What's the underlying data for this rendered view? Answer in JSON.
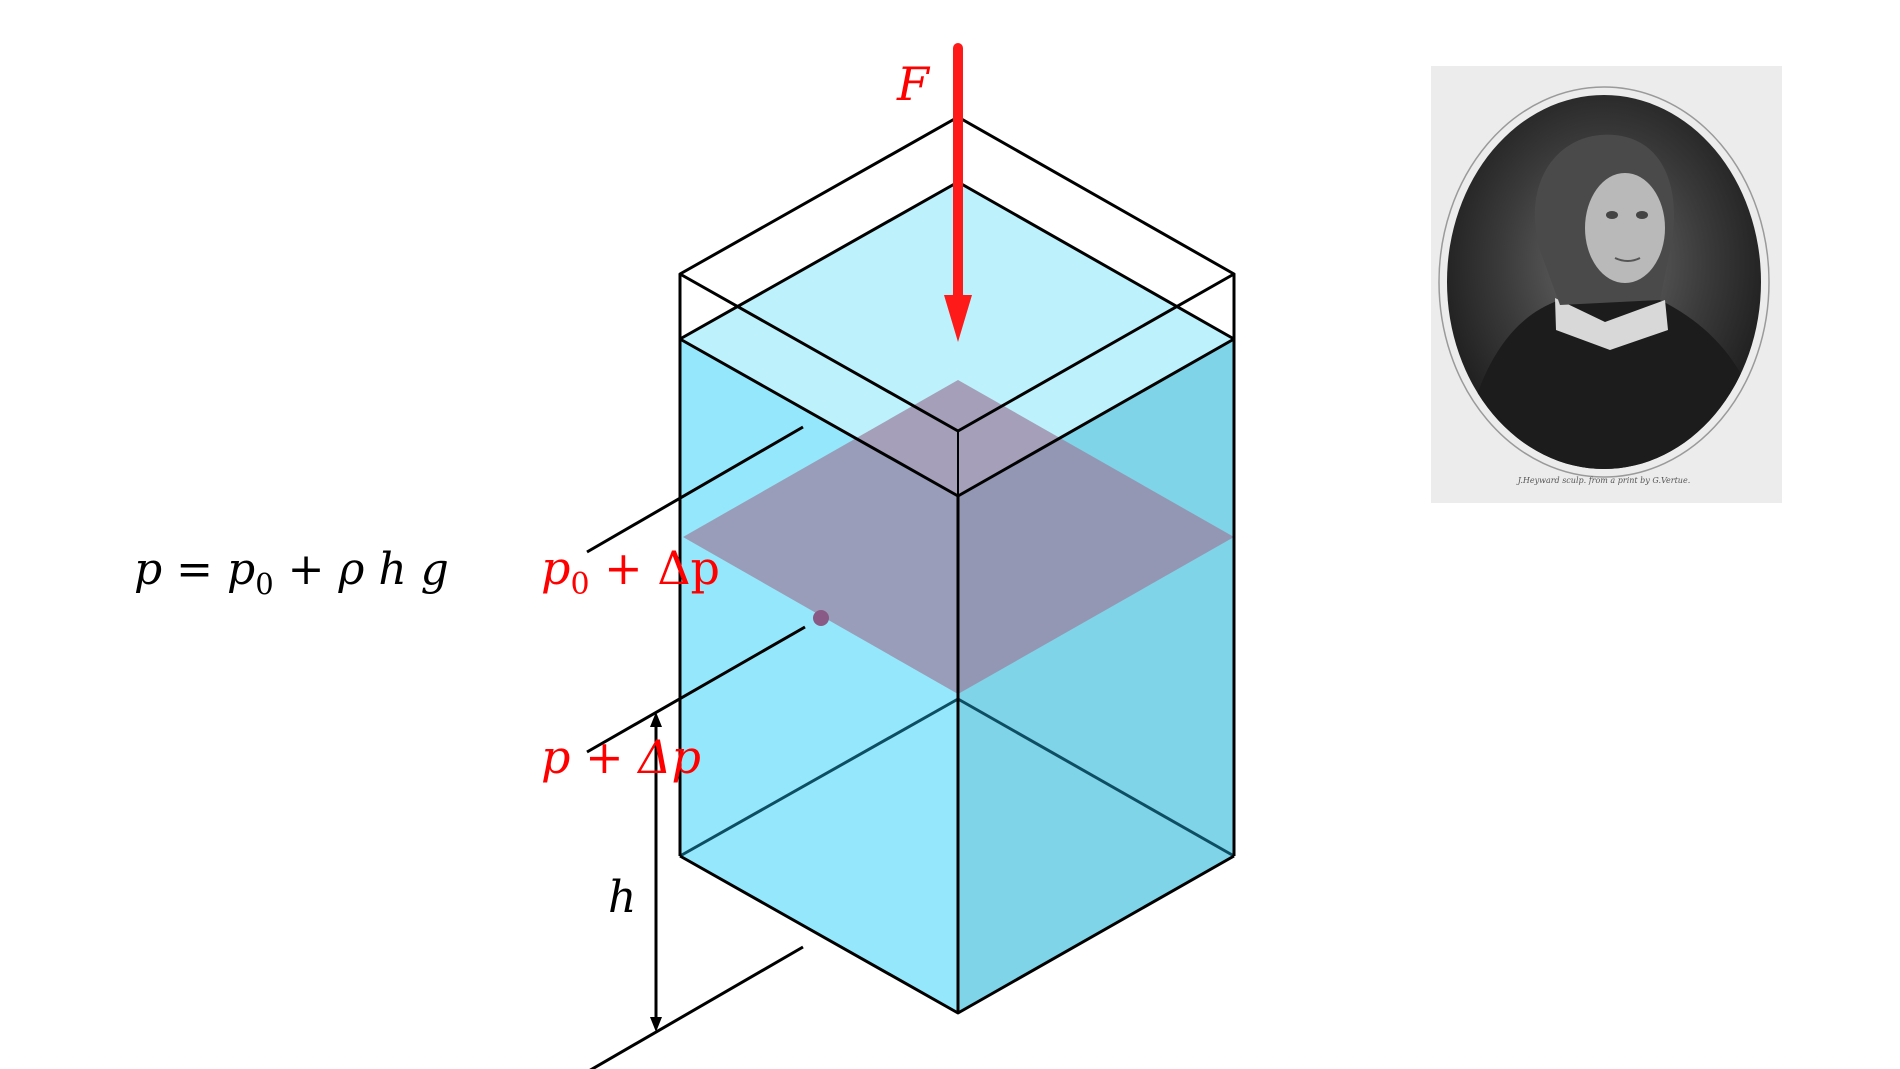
{
  "formula": {
    "p": "p",
    "eq": " = ",
    "p0": "p",
    "p0_sub": "0",
    "plus1": " + ",
    "rho_h_g": "ρ h g"
  },
  "labels": {
    "force": "F",
    "upper": {
      "p": "p",
      "sub": "0",
      "rest": " + Δp"
    },
    "lower": "p + Δp",
    "height": "h"
  },
  "portrait": {
    "caption": "J.Heyward sculp. from a print by G.Vertue."
  },
  "colors": {
    "water_front": "#95e8fb",
    "water_side": "#7fd4e8",
    "water_top": "#bdf1fb",
    "plane": "#9b7fa0",
    "force": "#ff1a1a",
    "label": "#ff0000"
  }
}
